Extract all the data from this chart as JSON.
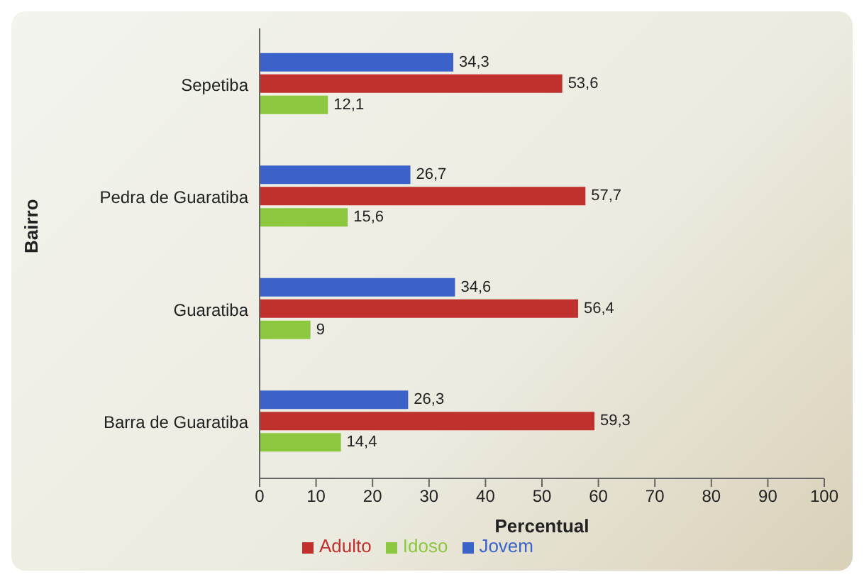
{
  "chart_data": {
    "type": "bar",
    "orientation": "horizontal",
    "xlabel": "Percentual",
    "ylabel": "Bairro",
    "categories": [
      "Sepetiba",
      "Pedra de Guaratiba",
      "Guaratiba",
      "Barra de Guaratiba"
    ],
    "series": [
      {
        "name": "Jovem",
        "color": "#3a62c9",
        "values": [
          34.3,
          26.7,
          34.6,
          26.3
        ],
        "value_labels": [
          "34,3",
          "26,7",
          "34,6",
          "26,3"
        ]
      },
      {
        "name": "Adulto",
        "color": "#c0302c",
        "values": [
          53.6,
          57.7,
          56.4,
          59.3
        ],
        "value_labels": [
          "53,6",
          "57,7",
          "56,4",
          "59,3"
        ]
      },
      {
        "name": "Idoso",
        "color": "#8dc63f",
        "values": [
          12.1,
          15.6,
          9,
          14.4
        ],
        "value_labels": [
          "12,1",
          "15,6",
          "9",
          "14,4"
        ]
      }
    ],
    "xlim": [
      0,
      100
    ],
    "xticks": [
      0,
      10,
      20,
      30,
      40,
      50,
      60,
      70,
      80,
      90,
      100
    ],
    "grid": false,
    "legend": "bottom"
  }
}
